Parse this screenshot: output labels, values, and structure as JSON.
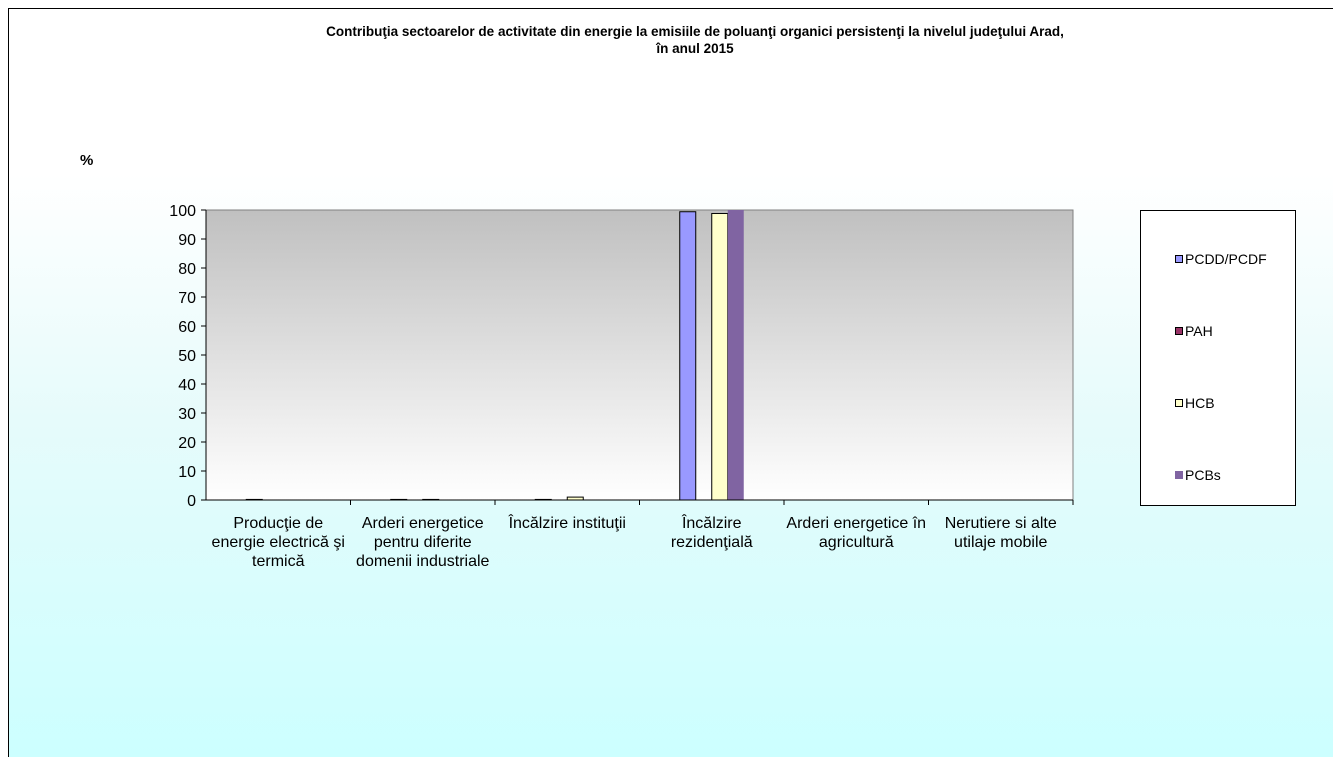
{
  "chart_data": {
    "type": "bar",
    "title_line1": "Contribuţia sectoarelor de activitate din energie la emisiile de poluanţi organici persistenţi la nivelul judeţului Arad,",
    "title_line2": "în anul 2015",
    "ylabel": "%",
    "ylim": [
      0,
      100
    ],
    "yticks": [
      "0",
      "10",
      "20",
      "30",
      "40",
      "50",
      "60",
      "70",
      "80",
      "90",
      "100"
    ],
    "categories": [
      "Producţie de energie electrică şi termică",
      "Arderi energetice pentru diferite domenii industriale",
      "Încălzire instituţii",
      "Încălzire rezidenţială",
      "Arderi energetice în agricultură",
      "Nerutiere si alte utilaje mobile"
    ],
    "series": [
      {
        "name": "PCDD/PCDF",
        "color": "#9999ff",
        "values": [
          0.2,
          0.2,
          0.2,
          99.4,
          0,
          0
        ]
      },
      {
        "name": "PAH",
        "color": "#993366",
        "values": [
          0,
          0,
          0,
          0,
          0,
          0
        ]
      },
      {
        "name": "HCB",
        "color": "#ffffcc",
        "values": [
          0,
          0.2,
          1.0,
          98.8,
          0,
          0
        ]
      },
      {
        "name": "PCBs",
        "color": "#8064a2",
        "values": [
          0,
          0,
          0,
          100,
          0,
          0
        ]
      }
    ],
    "legend_position": "right",
    "grid": false
  }
}
